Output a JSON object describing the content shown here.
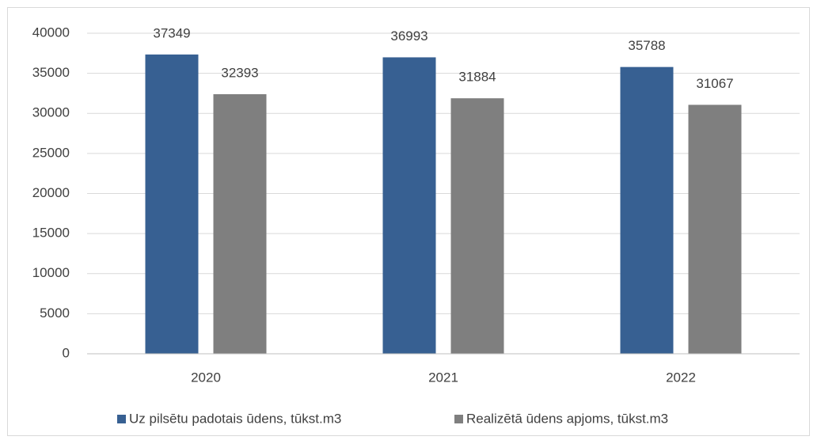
{
  "chart_data": {
    "type": "bar",
    "categories": [
      "2020",
      "2021",
      "2022"
    ],
    "series": [
      {
        "name": "Uz pilsētu padotais ūdens, tūkst.m3",
        "color": "#376092",
        "values": [
          37349,
          36993,
          35788
        ]
      },
      {
        "name": "Realizētā ūdens apjoms, tūkst.m3",
        "color": "#7f7f7f",
        "values": [
          32393,
          31884,
          31067
        ]
      }
    ],
    "ylim": [
      0,
      40000
    ],
    "yticks": [
      0,
      5000,
      10000,
      15000,
      20000,
      25000,
      30000,
      35000,
      40000
    ],
    "grid": true,
    "legend": "bottom"
  }
}
